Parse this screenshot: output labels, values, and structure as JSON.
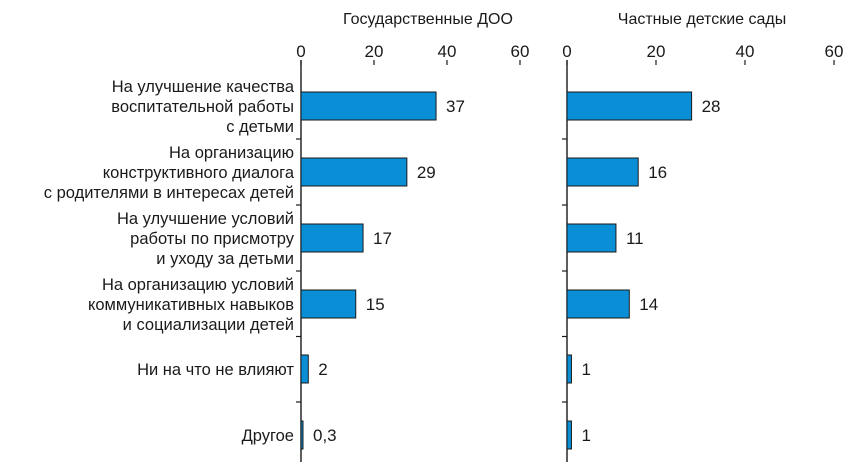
{
  "chart_data": [
    {
      "type": "bar",
      "orientation": "horizontal",
      "title": "Государственные ДОО",
      "categories": [
        [
          "На улучшение качества",
          "воспитательной работы",
          "с детьми"
        ],
        [
          "На организацию",
          "конструктивного диалога",
          "с родителями в интересах детей"
        ],
        [
          "На улучшение условий",
          "работы по присмотру",
          "и уходу за детьми"
        ],
        [
          "На организацию условий",
          "коммуникативных навыков",
          "и социализации детей"
        ],
        [
          "Ни на что не влияют"
        ],
        [
          "Другое"
        ]
      ],
      "values": [
        37,
        29,
        17,
        15,
        2,
        0.3
      ],
      "value_labels": [
        "37",
        "29",
        "17",
        "15",
        "2",
        "0,3"
      ],
      "xlim": [
        0,
        60
      ],
      "x_ticks": [
        0,
        20,
        40,
        60
      ],
      "x_tick_labels": [
        "0",
        "20",
        "40",
        "60"
      ],
      "tick_position": "top",
      "grid": false,
      "bar_color": "#0a8fd6"
    },
    {
      "type": "bar",
      "orientation": "horizontal",
      "title": "Частные детские сады",
      "categories": [
        [
          "На улучшение качества",
          "воспитательной работы",
          "с детьми"
        ],
        [
          "На организацию",
          "конструктивного диалога",
          "с родителями в интересах детей"
        ],
        [
          "На улучшение условий",
          "работы по присмотру",
          "и уходу за детьми"
        ],
        [
          "На организацию условий",
          "коммуникативных навыков",
          "и социализации детей"
        ],
        [
          "Ни на что не влияют"
        ],
        [
          "Другое"
        ]
      ],
      "values": [
        28,
        16,
        11,
        14,
        1,
        1
      ],
      "value_labels": [
        "28",
        "16",
        "11",
        "14",
        "1",
        "1"
      ],
      "xlim": [
        0,
        60
      ],
      "x_ticks": [
        0,
        20,
        40,
        60
      ],
      "x_tick_labels": [
        "0",
        "20",
        "40",
        "60"
      ],
      "tick_position": "top",
      "grid": false,
      "bar_color": "#0a8fd6"
    }
  ]
}
